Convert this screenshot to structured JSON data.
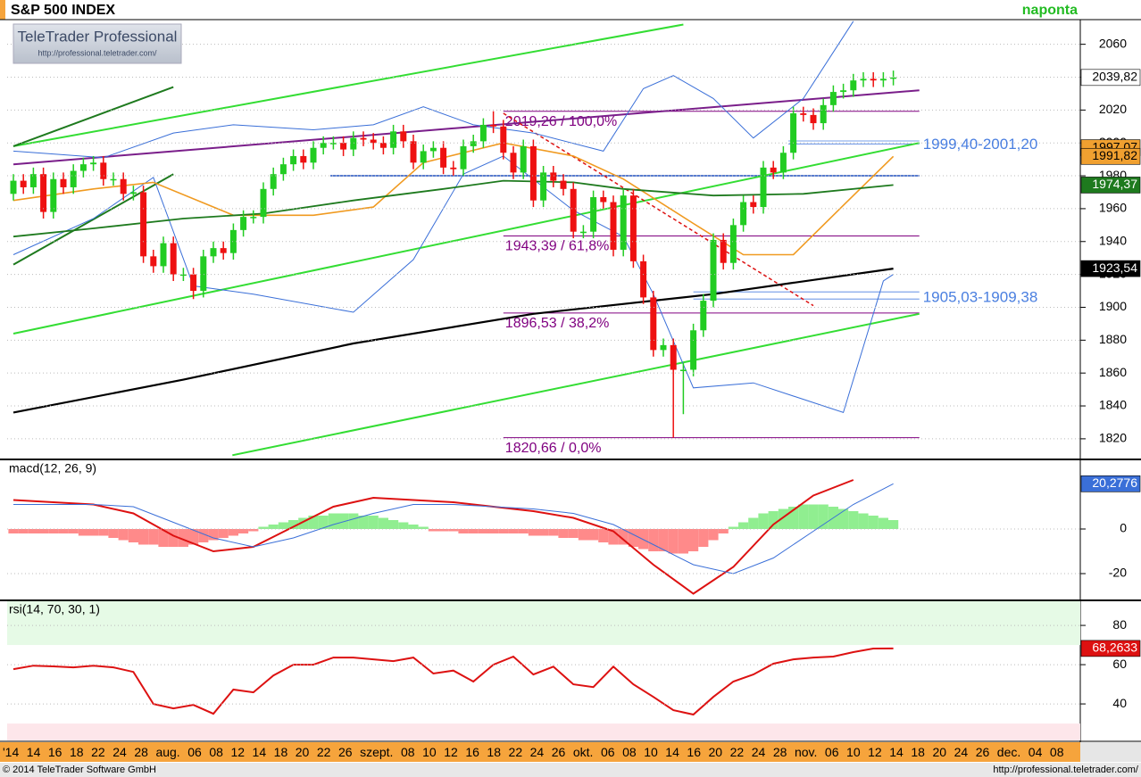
{
  "header": {
    "title": "S&P 500 INDEX",
    "period": "naponta",
    "logo": "TeleTrader Professional",
    "logo_url": "http://professional.teletrader.com/"
  },
  "chart_data": [
    {
      "type": "candlestick",
      "open": [
        1969,
        1977,
        1973,
        1981,
        1958,
        1978,
        1973,
        1983,
        1987,
        1988,
        1978,
        1978,
        1969,
        1970,
        1931,
        1925,
        1939,
        1920,
        1920,
        1910,
        1931,
        1936,
        1933,
        1947,
        1955,
        1955,
        1972,
        1981,
        1987,
        1992,
        1988,
        1997,
        2000,
        2000,
        1996,
        2003,
        2002,
        2000,
        1997,
        2007,
        2001,
        1988,
        1995,
        1997,
        1985,
        1984,
        1998,
        2001,
        2011,
        2010,
        1994,
        1982,
        1998,
        1965,
        1982,
        1977,
        1972,
        1946,
        1946,
        1967,
        1964,
        1935,
        1968,
        1928,
        1906,
        1874,
        1877,
        1862,
        1862,
        1886,
        1904,
        1941,
        1927,
        1950,
        1964,
        1961,
        1985,
        1982,
        1994,
        2018,
        2017,
        2012,
        2023,
        2031,
        2032,
        2038,
        2039,
        2038,
        2039
      ],
      "high": [
        1981,
        1981,
        1985,
        1985,
        1982,
        1982,
        1987,
        1991,
        1992,
        1992,
        1982,
        1982,
        1974,
        1974,
        1935,
        1943,
        1943,
        1924,
        1924,
        1935,
        1940,
        1940,
        1951,
        1959,
        1959,
        1976,
        1985,
        1991,
        1996,
        1996,
        2001,
        2004,
        2004,
        2004,
        2007,
        2007,
        2006,
        2004,
        2011,
        2011,
        2005,
        1999,
        2001,
        2001,
        1989,
        2002,
        2005,
        2015,
        2019.26,
        2014,
        1998,
        2002,
        2002,
        1986,
        1986,
        1981,
        1976,
        1950,
        1971,
        1971,
        1968,
        1972,
        1972,
        1932,
        1910,
        1881,
        1881,
        1866,
        1890,
        1908,
        1945,
        1945,
        1954,
        1968,
        1968,
        1989,
        1989,
        1998,
        2022,
        2022,
        2021,
        2027,
        2035,
        2036,
        2042,
        2043,
        2043,
        2043,
        2044
      ],
      "low": [
        1965,
        1969,
        1969,
        1954,
        1954,
        1969,
        1969,
        1979,
        1983,
        1974,
        1974,
        1965,
        1965,
        1927,
        1921,
        1921,
        1916,
        1916,
        1905,
        1906,
        1927,
        1929,
        1929,
        1943,
        1951,
        1951,
        1968,
        1977,
        1983,
        1984,
        1984,
        1993,
        1996,
        1992,
        1992,
        1998,
        1996,
        1993,
        1993,
        1997,
        1984,
        1984,
        1991,
        1981,
        1980,
        1980,
        1994,
        1997,
        2006,
        1990,
        1978,
        1978,
        1961,
        1961,
        1973,
        1968,
        1942,
        1942,
        1942,
        1960,
        1931,
        1931,
        1924,
        1902,
        1870,
        1870,
        1820.66,
        1835,
        1858,
        1882,
        1900,
        1923,
        1923,
        1946,
        1957,
        1957,
        1978,
        1978,
        1990,
        2013,
        2008,
        2008,
        2019,
        2027,
        2028,
        2034,
        2034,
        2034,
        2035
      ],
      "close": [
        1977,
        1973,
        1981,
        1958,
        1978,
        1973,
        1983,
        1987,
        1988,
        1978,
        1978,
        1969,
        1970,
        1931,
        1925,
        1939,
        1920,
        1920,
        1910,
        1931,
        1936,
        1933,
        1947,
        1955,
        1955,
        1972,
        1981,
        1987,
        1992,
        1988,
        1997,
        2000,
        2000,
        1996,
        2003,
        2002,
        2000,
        1997,
        2007,
        2001,
        1988,
        1995,
        1997,
        1985,
        1984,
        1998,
        2001,
        2011,
        2010,
        1994,
        1982,
        1998,
        1965,
        1982,
        1977,
        1972,
        1946,
        1946,
        1967,
        1964,
        1935,
        1968,
        1928,
        1906,
        1874,
        1877,
        1862,
        1862,
        1886,
        1904,
        1941,
        1927,
        1950,
        1964,
        1961,
        1985,
        1982,
        1994,
        2018,
        2017,
        2012,
        2023,
        2031,
        2032,
        2038,
        2039,
        2038,
        2039,
        2039.82
      ],
      "up_color": "#22cc22",
      "down_color": "#ee1111",
      "ylim": [
        1808,
        2075
      ],
      "yticks": [
        1820,
        1840,
        1860,
        1880,
        1900,
        1920,
        1940,
        1960,
        1980,
        2000,
        2020,
        2040,
        2060
      ],
      "grid": true,
      "overlays": [
        {
          "color": "#3a6fd8",
          "width": 1,
          "x": [
            0,
            9,
            16,
            22,
            30,
            36,
            41,
            46,
            52,
            59,
            63,
            66,
            70,
            74,
            79,
            84
          ],
          "values": [
            1995,
            1991,
            2006,
            2011,
            2008,
            2011,
            2022,
            2011,
            2006,
            1995,
            2033,
            2041,
            2027,
            2003,
            2027,
            2074
          ]
        },
        {
          "color": "#3a6fd8",
          "width": 1,
          "x": [
            0,
            8,
            14,
            18,
            24,
            34,
            40,
            45,
            49,
            56,
            61,
            64,
            68,
            74,
            83,
            87,
            88
          ],
          "values": [
            1932,
            1954,
            1979,
            1913,
            1908,
            1897,
            1929,
            1981,
            1992,
            1959,
            1943,
            1908,
            1851,
            1854,
            1836,
            1916,
            1920
          ]
        },
        {
          "color": "#f09a20",
          "width": 1.6,
          "x": [
            0,
            8,
            14,
            22,
            30,
            36,
            41,
            49,
            56,
            61,
            68,
            73,
            78,
            83,
            88
          ],
          "values": [
            1965,
            1972,
            1976,
            1956,
            1956,
            1961,
            1988,
            2000,
            1992,
            1978,
            1951,
            1932,
            1932,
            1962,
            1991.82
          ]
        },
        {
          "color": "#1e7a1e",
          "width": 1.8,
          "x": [
            0,
            8,
            17,
            25,
            34,
            43,
            49,
            56,
            61,
            70,
            79,
            88
          ],
          "values": [
            1943,
            1948,
            1954,
            1957,
            1965,
            1972,
            1977,
            1976,
            1972,
            1968,
            1969,
            1974.37
          ]
        },
        {
          "color": "#000000",
          "width": 2.2,
          "x": [
            0,
            17,
            34,
            52,
            70,
            88
          ],
          "values": [
            1836,
            1856,
            1878,
            1896,
            1908,
            1923.54
          ]
        }
      ],
      "trendlines": [
        {
          "color": "#33dd33",
          "x": [
            0,
            67
          ],
          "values": [
            1998,
            2072
          ]
        },
        {
          "color": "#33dd33",
          "x": [
            0,
            90.6
          ],
          "values": [
            1884,
            2000
          ]
        },
        {
          "color": "#33dd33",
          "x": [
            21.9,
            90.6
          ],
          "values": [
            1810,
            1896
          ]
        },
        {
          "color": "#1e7a1e",
          "x": [
            0,
            16
          ],
          "values": [
            1998,
            2034
          ]
        },
        {
          "color": "#1e7a1e",
          "x": [
            0,
            16
          ],
          "values": [
            1926,
            1981
          ]
        },
        {
          "color": "#7a1e8a",
          "x": [
            0,
            90.6
          ],
          "values": [
            1987,
            2032
          ]
        },
        {
          "color": "#dd1111",
          "dashed": true,
          "x": [
            49,
            80
          ],
          "values": [
            2018,
            1901
          ]
        }
      ],
      "levels": [
        {
          "value": 1980,
          "color": "#2050c0",
          "x": [
            31.7,
            90.6
          ]
        },
        {
          "value": 2019.26,
          "label": "2019,26 / 100,0%",
          "color": "#800080",
          "x": [
            49,
            90.6
          ]
        },
        {
          "value": 1943.39,
          "label": "1943,39 / 61,8%",
          "color": "#800080",
          "x": [
            49,
            90.6
          ]
        },
        {
          "value": 1896.53,
          "label": "1896,53 / 38,2%",
          "color": "#800080",
          "x": [
            49,
            90.6
          ]
        },
        {
          "value": 1820.66,
          "label": "1820,66 / 0,0%",
          "color": "#800080",
          "x": [
            49,
            90.6
          ]
        }
      ],
      "zones": [
        {
          "low": 1999.4,
          "high": 2001.2,
          "label": "1999,40-2001,20",
          "color": "#4a7fe0",
          "x": [
            77.5,
            90.6
          ]
        },
        {
          "low": 1905.03,
          "high": 1909.38,
          "label": "1905,03-1909,38",
          "color": "#4a7fe0",
          "x": [
            68,
            90.6
          ]
        }
      ],
      "price_tags": [
        {
          "value": 2039.82,
          "label": "2039,82",
          "color": "#ffffff",
          "text_color": "#000000"
        },
        {
          "value": 1997.07,
          "label": "1997,07",
          "color": "#f0a030",
          "text_color": "#000000"
        },
        {
          "value": 1991.82,
          "label": "1991,82",
          "color": "#f0a030",
          "text_color": "#000000"
        },
        {
          "value": 1974.37,
          "label": "1974,37",
          "color": "#1e7a1e",
          "text_color": "#ffffff"
        },
        {
          "value": 1923.54,
          "label": "1923,54",
          "color": "#000000",
          "text_color": "#ffffff"
        }
      ]
    },
    {
      "type": "macd",
      "title": "macd(12, 26, 9)",
      "histogram": [
        -2,
        -2,
        -2,
        -2,
        -2,
        -2,
        -2,
        -3,
        -3,
        -3,
        -4,
        -5,
        -6,
        -7,
        -7,
        -8,
        -8,
        -8,
        -7,
        -6,
        -5,
        -4,
        -3,
        -2,
        -1,
        1,
        2,
        3,
        4,
        5,
        6,
        6,
        7,
        7,
        7,
        6,
        6,
        5,
        4,
        3,
        2,
        1,
        -1,
        -1,
        -1,
        -2,
        -2,
        -2,
        -2,
        -2,
        -2,
        -2,
        -3,
        -3,
        -3,
        -4,
        -4,
        -5,
        -5,
        -6,
        -7,
        -7,
        -8,
        -9,
        -10,
        -10,
        -11,
        -11,
        -10,
        -8,
        -5,
        -2,
        1,
        3,
        5,
        7,
        8,
        9,
        10,
        11,
        11,
        11,
        10,
        9,
        8,
        7,
        6,
        5,
        4
      ],
      "up_color": "#90ee90",
      "down_color": "#ff8a8a",
      "lines": [
        {
          "color": "#dd1111",
          "width": 2,
          "x": [
            0,
            4,
            8,
            12,
            16,
            20,
            24,
            28,
            32,
            36,
            40,
            44,
            48,
            52,
            56,
            60,
            64,
            68,
            72,
            76,
            80,
            84
          ],
          "values": [
            13,
            12,
            11,
            7,
            -3,
            -10,
            -8,
            1,
            10,
            14,
            13,
            12,
            10,
            8,
            5,
            -1,
            -16,
            -29,
            -17,
            2,
            15,
            22
          ]
        },
        {
          "color": "#3a6fd8",
          "width": 1,
          "x": [
            0,
            4,
            8,
            12,
            16,
            20,
            24,
            28,
            32,
            36,
            40,
            44,
            48,
            52,
            56,
            60,
            64,
            68,
            72,
            76,
            80,
            84,
            88
          ],
          "values": [
            11,
            11,
            11,
            10,
            3,
            -4,
            -8,
            -4,
            2,
            7,
            11,
            11,
            10,
            9,
            7,
            2,
            -7,
            -16,
            -20,
            -13,
            -1,
            11,
            20.2776
          ]
        }
      ],
      "ylim": [
        -31.6,
        30.8
      ],
      "yticks": [
        -20,
        0
      ],
      "grid": true,
      "price_tags": [
        {
          "value": 20.2776,
          "label": "20,2776",
          "color": "#3a6fd8",
          "text_color": "#ffffff"
        }
      ]
    },
    {
      "type": "rsi",
      "title": "rsi(14, 70, 30, 1)",
      "x": [
        0,
        2,
        4,
        6,
        8,
        10,
        12,
        14,
        16,
        18,
        20,
        22,
        24,
        26,
        28,
        30,
        32,
        34,
        36,
        38,
        40,
        42,
        44,
        46,
        48,
        50,
        52,
        54,
        56,
        58,
        60,
        62,
        64,
        66,
        68,
        70,
        72,
        74,
        76,
        78,
        80,
        82,
        84,
        86,
        88
      ],
      "values": [
        57.7,
        59.5,
        59.1,
        58.6,
        59.5,
        58.6,
        56.3,
        40,
        37.7,
        39.5,
        35,
        47.3,
        45.9,
        54.5,
        60,
        60,
        63.6,
        63.6,
        62.7,
        61.8,
        63.6,
        55.5,
        57,
        51.4,
        60,
        64.1,
        55,
        59,
        50,
        48.6,
        59,
        50,
        43.6,
        36.8,
        34.6,
        43.6,
        51.4,
        55,
        60.5,
        62.7,
        63.6,
        64.1,
        66.4,
        68.2,
        68.2633
      ],
      "color": "#dd1111",
      "overbought": 70,
      "oversold": 30,
      "ylim": [
        21.4,
        92.3
      ],
      "yticks": [
        40,
        60,
        80
      ],
      "grid": true,
      "price_tags": [
        {
          "value": 68.2633,
          "label": "68,2633",
          "color": "#dd1111",
          "text_color": "#ffffff"
        }
      ]
    }
  ],
  "x_axis": {
    "labels": [
      "'14",
      "14",
      "16",
      "18",
      "22",
      "24",
      "28",
      "aug.",
      "06",
      "08",
      "12",
      "14",
      "18",
      "20",
      "22",
      "26",
      "szept.",
      "08",
      "10",
      "12",
      "16",
      "18",
      "22",
      "24",
      "26",
      "okt.",
      "06",
      "08",
      "10",
      "14",
      "16",
      "20",
      "22",
      "24",
      "28",
      "nov.",
      "06",
      "10",
      "12",
      "14",
      "18",
      "20",
      "24",
      "26",
      "dec.",
      "04",
      "08"
    ]
  },
  "footer": {
    "copyright": "© 2014 TeleTrader Software GmbH",
    "url": "http://professional.teletrader.com/"
  }
}
